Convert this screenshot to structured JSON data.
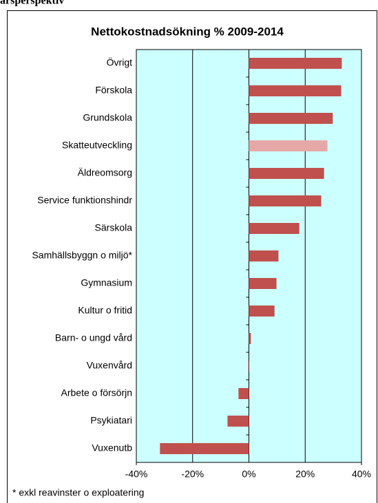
{
  "header": {
    "title": "årsperspektiv"
  },
  "chart_data": {
    "type": "barh",
    "title": "Nettokostnadsökning % 2009-2014",
    "categories": [
      "Övrigt",
      "Förskola",
      "Grundskola",
      "Skatteutveckling",
      "Äldreomsorg",
      "Service funktionshindr",
      "Särskola",
      "Samhällsbyggn o miljö*",
      "Gymnasium",
      "Kultur o fritid",
      "Barn- o ungd vård",
      "Vuxenvård",
      "Arbete o försörjn",
      "Psykiatari",
      "Vuxenutb"
    ],
    "values": [
      33,
      32.8,
      29.8,
      27.9,
      26.7,
      25.7,
      17.9,
      10.5,
      9.8,
      9.1,
      0.7,
      -0.2,
      -3.7,
      -7.6,
      -31.6
    ],
    "colors": [
      "#c0504d",
      "#c0504d",
      "#c0504d",
      "#e6a8a6",
      "#c0504d",
      "#c0504d",
      "#c0504d",
      "#c0504d",
      "#c0504d",
      "#c0504d",
      "#c0504d",
      "#c0504d",
      "#c0504d",
      "#c0504d",
      "#c0504d"
    ],
    "xlim": [
      -40,
      40
    ],
    "xticks": [
      {
        "value": -40,
        "label": "-40%"
      },
      {
        "value": -20,
        "label": "-20%"
      },
      {
        "value": 0,
        "label": "0%"
      },
      {
        "value": 20,
        "label": "20%"
      },
      {
        "value": 40,
        "label": "40%"
      }
    ],
    "grid": true,
    "plot_background": "#ccffff",
    "footnote": "* exkl reavinster o exploatering"
  }
}
